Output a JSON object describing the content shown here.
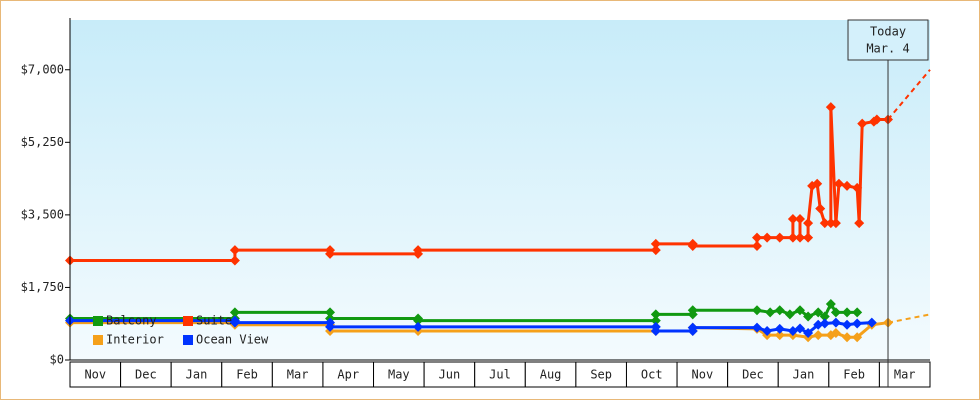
{
  "chart_data": {
    "type": "line",
    "ylim": [
      0,
      8200
    ],
    "yticks": [
      {
        "value": 0,
        "label": "$0"
      },
      {
        "value": 1750,
        "label": "$1,750"
      },
      {
        "value": 3500,
        "label": "$3,500"
      },
      {
        "value": 5250,
        "label": "$5,250"
      },
      {
        "value": 7000,
        "label": "$7,000"
      }
    ],
    "xlim": [
      0,
      17
    ],
    "categories": [
      "Nov",
      "Dec",
      "Jan",
      "Feb",
      "Mar",
      "Apr",
      "May",
      "Jun",
      "Jul",
      "Aug",
      "Sep",
      "Oct",
      "Nov",
      "Dec",
      "Jan",
      "Feb",
      "Mar"
    ],
    "today": {
      "x": 16.17,
      "label": "Today",
      "date": "Mar. 4"
    },
    "series": [
      {
        "name": "Balcony",
        "color": "#119911",
        "x": [
          0,
          3.26,
          3.26,
          5.14,
          5.14,
          6.88,
          6.88,
          11.58,
          11.58,
          12.31,
          12.31,
          13.58,
          13.84,
          14.03,
          14.23,
          14.43,
          14.59,
          14.79,
          14.92,
          15.04,
          15.14,
          15.36,
          15.56
        ],
        "values": [
          1000,
          1000,
          1150,
          1150,
          1000,
          1000,
          950,
          950,
          1100,
          1100,
          1200,
          1200,
          1150,
          1200,
          1100,
          1200,
          1050,
          1150,
          1050,
          1350,
          1150,
          1150,
          1150
        ]
      },
      {
        "name": "Suite",
        "color": "#ff3300",
        "x": [
          0,
          3.26,
          3.26,
          5.14,
          5.14,
          6.88,
          6.88,
          11.58,
          11.58,
          12.31,
          12.31,
          13.58,
          13.58,
          13.78,
          14.03,
          14.29,
          14.29,
          14.43,
          14.43,
          14.59,
          14.59,
          14.67,
          14.77,
          14.83,
          14.92,
          15.04,
          15.04,
          15.14,
          15.2,
          15.36,
          15.56,
          15.6,
          15.66,
          15.89,
          15.95,
          16.17
        ],
        "values": [
          2400,
          2400,
          2650,
          2650,
          2560,
          2560,
          2650,
          2650,
          2800,
          2800,
          2750,
          2750,
          2950,
          2950,
          2950,
          2950,
          3400,
          3400,
          2950,
          2950,
          3300,
          4200,
          4250,
          3650,
          3300,
          3300,
          6100,
          3300,
          4250,
          4200,
          4150,
          3300,
          5700,
          5750,
          5800,
          5800
        ],
        "projection": {
          "x": [
            16.17,
            17
          ],
          "values": [
            5800,
            7000
          ]
        }
      },
      {
        "name": "Interior",
        "color": "#f5a01a",
        "x": [
          0,
          3.26,
          3.26,
          5.14,
          5.14,
          6.88,
          11.58,
          12.31,
          12.31,
          13.58,
          13.78,
          14.03,
          14.29,
          14.59,
          14.79,
          15.04,
          15.14,
          15.36,
          15.56,
          15.85,
          16.17
        ],
        "values": [
          900,
          900,
          850,
          850,
          700,
          700,
          700,
          700,
          780,
          750,
          600,
          600,
          600,
          550,
          600,
          600,
          650,
          550,
          550,
          850,
          900
        ],
        "projection": {
          "x": [
            16.17,
            17
          ],
          "values": [
            900,
            1100
          ]
        }
      },
      {
        "name": "Ocean View",
        "color": "#0033ff",
        "x": [
          0,
          3.26,
          3.26,
          5.14,
          5.14,
          6.88,
          11.58,
          11.58,
          12.31,
          12.31,
          13.58,
          13.78,
          14.03,
          14.29,
          14.43,
          14.59,
          14.79,
          14.92,
          15.14,
          15.36,
          15.56,
          15.85
        ],
        "values": [
          950,
          950,
          900,
          900,
          800,
          800,
          800,
          700,
          700,
          780,
          780,
          700,
          750,
          700,
          760,
          650,
          850,
          880,
          900,
          850,
          880,
          900
        ]
      }
    ]
  }
}
